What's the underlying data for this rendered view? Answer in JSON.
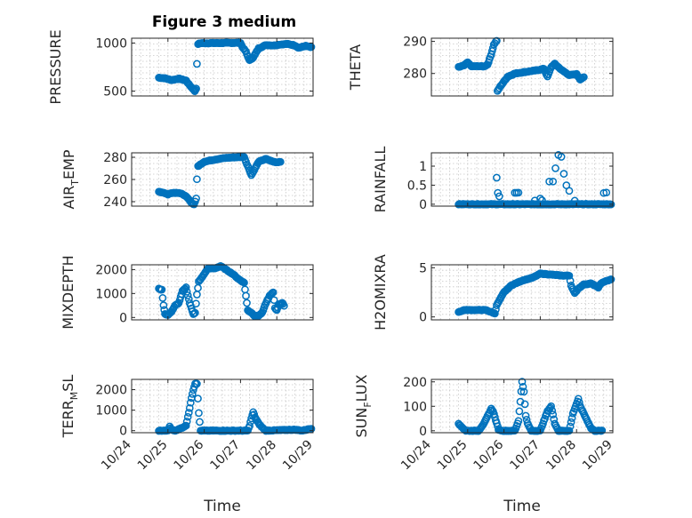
{
  "figure": {
    "title": "Figure 3 medium",
    "xlabel": "Time"
  },
  "colors": {
    "marker": "#0072bd",
    "axis": "#262626",
    "grid": "#c8c8c8"
  },
  "chart_data": [
    {
      "type": "scatter",
      "id": "pressure",
      "ylabel": "PRESSURE",
      "ylabel_parts": [
        "PRESSURE"
      ],
      "ylim": [
        450,
        1050
      ],
      "yticks": [
        500,
        1000
      ],
      "ytick_labels": [
        "500",
        "1000"
      ],
      "xlim": [
        0,
        5
      ],
      "xticks": [
        0,
        1,
        2,
        3,
        4,
        5
      ],
      "xtick_labels": [
        "10/24",
        "10/25",
        "10/26",
        "10/27",
        "10/28",
        "10/29"
      ],
      "grid": true,
      "show_xticklabels": false,
      "anchors": [
        [
          0.75,
          640
        ],
        [
          0.9,
          635
        ],
        [
          1.0,
          625
        ],
        [
          1.1,
          615
        ],
        [
          1.3,
          630
        ],
        [
          1.5,
          610
        ],
        [
          1.6,
          560
        ],
        [
          1.7,
          520
        ],
        [
          1.74,
          500
        ],
        [
          1.78,
          530
        ],
        [
          1.8,
          780
        ],
        [
          1.83,
          990
        ],
        [
          1.9,
          998
        ],
        [
          2.5,
          1000
        ],
        [
          3.0,
          1002
        ],
        [
          3.05,
          960
        ],
        [
          3.15,
          910
        ],
        [
          3.2,
          860
        ],
        [
          3.25,
          820
        ],
        [
          3.35,
          850
        ],
        [
          3.5,
          945
        ],
        [
          3.7,
          980
        ],
        [
          3.9,
          975
        ],
        [
          4.1,
          985
        ],
        [
          4.3,
          990
        ],
        [
          4.5,
          975
        ],
        [
          4.6,
          950
        ],
        [
          4.8,
          970
        ],
        [
          4.95,
          955
        ]
      ]
    },
    {
      "type": "scatter",
      "id": "theta",
      "ylabel": "THETA",
      "ylabel_parts": [
        "THETA"
      ],
      "ylim": [
        273,
        291
      ],
      "yticks": [
        280,
        290
      ],
      "ytick_labels": [
        "280",
        "290"
      ],
      "xlim": [
        0,
        5
      ],
      "xticks": [
        0,
        1,
        2,
        3,
        4,
        5
      ],
      "xtick_labels": [
        "10/24",
        "10/25",
        "10/26",
        "10/27",
        "10/28",
        "10/29"
      ],
      "grid": true,
      "show_xticklabels": false,
      "anchors": [
        [
          0.75,
          282
        ],
        [
          0.9,
          282.5
        ],
        [
          1.0,
          283.5
        ],
        [
          1.1,
          282.2
        ],
        [
          1.3,
          282.3
        ],
        [
          1.45,
          282.2
        ],
        [
          1.55,
          282.8
        ],
        [
          1.65,
          286
        ],
        [
          1.72,
          289
        ],
        [
          1.78,
          290
        ],
        [
          1.8,
          290.2
        ],
        [
          1.82,
          274.5
        ],
        [
          1.9,
          276
        ],
        [
          2.1,
          279
        ],
        [
          2.3,
          280
        ],
        [
          2.6,
          280.5
        ],
        [
          2.9,
          281
        ],
        [
          3.1,
          281.5
        ],
        [
          3.2,
          279
        ],
        [
          3.3,
          282
        ],
        [
          3.4,
          283
        ],
        [
          3.5,
          282
        ],
        [
          3.6,
          281
        ],
        [
          3.8,
          279.5
        ],
        [
          4.0,
          279.8
        ],
        [
          4.1,
          278.2
        ],
        [
          4.2,
          278.8
        ]
      ]
    },
    {
      "type": "scatter",
      "id": "air_temp",
      "ylabel": "AIR_TEMP",
      "ylabel_parts": [
        "AIR",
        "T",
        "EMP"
      ],
      "ylim": [
        236,
        284
      ],
      "yticks": [
        240,
        260,
        280
      ],
      "ytick_labels": [
        "240",
        "260",
        "280"
      ],
      "xlim": [
        0,
        5
      ],
      "xticks": [
        0,
        1,
        2,
        3,
        4,
        5
      ],
      "xtick_labels": [
        "10/24",
        "10/25",
        "10/26",
        "10/27",
        "10/28",
        "10/29"
      ],
      "grid": true,
      "show_xticklabels": false,
      "anchors": [
        [
          0.75,
          249
        ],
        [
          0.9,
          248
        ],
        [
          1.0,
          246.5
        ],
        [
          1.1,
          248
        ],
        [
          1.3,
          248
        ],
        [
          1.45,
          246
        ],
        [
          1.55,
          243
        ],
        [
          1.65,
          239
        ],
        [
          1.72,
          237.5
        ],
        [
          1.78,
          243
        ],
        [
          1.8,
          260
        ],
        [
          1.83,
          272
        ],
        [
          2.0,
          276
        ],
        [
          2.3,
          278
        ],
        [
          2.6,
          279.5
        ],
        [
          2.9,
          280
        ],
        [
          3.1,
          280.5
        ],
        [
          3.15,
          276
        ],
        [
          3.25,
          268
        ],
        [
          3.3,
          264
        ],
        [
          3.4,
          270
        ],
        [
          3.5,
          276
        ],
        [
          3.7,
          278.5
        ],
        [
          3.9,
          276
        ],
        [
          4.0,
          275.5
        ],
        [
          4.1,
          276
        ]
      ]
    },
    {
      "type": "scatter",
      "id": "rainfall",
      "ylabel": "RAINFALL",
      "ylabel_parts": [
        "RAINFALL"
      ],
      "ylim": [
        -0.05,
        1.35
      ],
      "yticks": [
        0,
        0.5,
        1
      ],
      "ytick_labels": [
        "0",
        "0.5",
        "1"
      ],
      "xlim": [
        0,
        5
      ],
      "xticks": [
        0,
        1,
        2,
        3,
        4,
        5
      ],
      "xtick_labels": [
        "10/24",
        "10/25",
        "10/26",
        "10/27",
        "10/28",
        "10/29"
      ],
      "grid": true,
      "show_xticklabels": false,
      "anchors": [
        [
          0.75,
          0
        ],
        [
          4.95,
          0
        ]
      ],
      "points": [
        [
          1.8,
          0.7
        ],
        [
          1.83,
          0.3
        ],
        [
          1.87,
          0.2
        ],
        [
          2.3,
          0.3
        ],
        [
          2.35,
          0.3
        ],
        [
          2.4,
          0.3
        ],
        [
          3.25,
          0.6
        ],
        [
          3.35,
          0.6
        ],
        [
          3.42,
          0.95
        ],
        [
          3.5,
          1.3
        ],
        [
          3.58,
          1.25
        ],
        [
          3.65,
          0.8
        ],
        [
          3.72,
          0.5
        ],
        [
          3.8,
          0.35
        ],
        [
          3.95,
          0.1
        ],
        [
          4.75,
          0.3
        ],
        [
          4.82,
          0.3
        ],
        [
          2.85,
          0.1
        ],
        [
          3.0,
          0.15
        ],
        [
          3.05,
          0.1
        ]
      ]
    },
    {
      "type": "scatter",
      "id": "mixdepth",
      "ylabel": "MIXDEPTH",
      "ylabel_parts": [
        "MIXDEPTH"
      ],
      "ylim": [
        -100,
        2200
      ],
      "yticks": [
        0,
        1000,
        2000
      ],
      "ytick_labels": [
        "0",
        "1000",
        "2000"
      ],
      "xlim": [
        0,
        5
      ],
      "xticks": [
        0,
        1,
        2,
        3,
        4,
        5
      ],
      "xtick_labels": [
        "10/24",
        "10/25",
        "10/26",
        "10/27",
        "10/28",
        "10/29"
      ],
      "grid": true,
      "show_xticklabels": false,
      "anchors": [
        [
          0.75,
          1200
        ],
        [
          0.83,
          1150
        ],
        [
          0.88,
          500
        ],
        [
          0.92,
          150
        ],
        [
          1.0,
          100
        ],
        [
          1.1,
          250
        ],
        [
          1.2,
          500
        ],
        [
          1.3,
          600
        ],
        [
          1.4,
          1100
        ],
        [
          1.5,
          1250
        ],
        [
          1.6,
          600
        ],
        [
          1.7,
          150
        ],
        [
          1.75,
          200
        ],
        [
          1.8,
          950
        ],
        [
          1.85,
          1500
        ],
        [
          1.95,
          1700
        ],
        [
          2.1,
          2050
        ],
        [
          2.3,
          2050
        ],
        [
          2.45,
          2150
        ],
        [
          2.55,
          2050
        ],
        [
          2.7,
          1900
        ],
        [
          2.8,
          1800
        ],
        [
          2.95,
          1600
        ],
        [
          3.1,
          1450
        ],
        [
          3.15,
          900
        ],
        [
          3.2,
          300
        ],
        [
          3.3,
          200
        ],
        [
          3.4,
          50
        ],
        [
          3.5,
          80
        ],
        [
          3.6,
          200
        ],
        [
          3.7,
          600
        ],
        [
          3.8,
          900
        ],
        [
          3.9,
          1050
        ],
        [
          3.95,
          400
        ],
        [
          4.0,
          300
        ],
        [
          4.05,
          550
        ],
        [
          4.15,
          600
        ],
        [
          4.2,
          500
        ]
      ]
    },
    {
      "type": "scatter",
      "id": "h2omixra",
      "ylabel": "H2OMIXRA",
      "ylabel_parts": [
        "H2OMIXRA"
      ],
      "ylim": [
        -0.3,
        5.3
      ],
      "yticks": [
        0,
        5
      ],
      "ytick_labels": [
        "0",
        "5"
      ],
      "xlim": [
        0,
        5
      ],
      "xticks": [
        0,
        1,
        2,
        3,
        4,
        5
      ],
      "xtick_labels": [
        "10/24",
        "10/25",
        "10/26",
        "10/27",
        "10/28",
        "10/29"
      ],
      "grid": true,
      "show_xticklabels": false,
      "anchors": [
        [
          0.75,
          0.5
        ],
        [
          0.9,
          0.7
        ],
        [
          1.2,
          0.7
        ],
        [
          1.5,
          0.7
        ],
        [
          1.75,
          0.35
        ],
        [
          1.8,
          1.2
        ],
        [
          2.0,
          2.5
        ],
        [
          2.2,
          3.2
        ],
        [
          2.5,
          3.7
        ],
        [
          2.8,
          4.0
        ],
        [
          3.0,
          4.4
        ],
        [
          3.3,
          4.3
        ],
        [
          3.6,
          4.2
        ],
        [
          3.8,
          4.2
        ],
        [
          3.85,
          3.2
        ],
        [
          3.95,
          2.4
        ],
        [
          4.05,
          2.9
        ],
        [
          4.2,
          3.3
        ],
        [
          4.4,
          3.4
        ],
        [
          4.6,
          3.0
        ],
        [
          4.7,
          3.5
        ],
        [
          4.95,
          3.8
        ]
      ]
    },
    {
      "type": "scatter",
      "id": "terr_msl",
      "ylabel": "TERR_MSL",
      "ylabel_parts": [
        "TERR",
        "M",
        "SL"
      ],
      "ylim": [
        -100,
        2500
      ],
      "yticks": [
        0,
        1000,
        2000
      ],
      "ytick_labels": [
        "0",
        "1000",
        "2000"
      ],
      "xlim": [
        0,
        5
      ],
      "xticks": [
        0,
        1,
        2,
        3,
        4,
        5
      ],
      "xtick_labels": [
        "10/24",
        "10/25",
        "10/26",
        "10/27",
        "10/28",
        "10/29"
      ],
      "grid": true,
      "show_xticklabels": true,
      "anchors": [
        [
          0.75,
          0
        ],
        [
          1.0,
          0
        ],
        [
          1.05,
          200
        ],
        [
          1.1,
          50
        ],
        [
          1.2,
          0
        ],
        [
          1.4,
          150
        ],
        [
          1.5,
          250
        ],
        [
          1.6,
          1100
        ],
        [
          1.65,
          1600
        ],
        [
          1.7,
          2000
        ],
        [
          1.75,
          2300
        ],
        [
          1.8,
          2300
        ],
        [
          1.85,
          850
        ],
        [
          1.9,
          0
        ],
        [
          3.2,
          0
        ],
        [
          3.25,
          250
        ],
        [
          3.3,
          600
        ],
        [
          3.35,
          900
        ],
        [
          3.4,
          650
        ],
        [
          3.5,
          350
        ],
        [
          3.6,
          150
        ],
        [
          3.7,
          0
        ],
        [
          4.5,
          50
        ],
        [
          4.7,
          0
        ],
        [
          4.95,
          100
        ]
      ]
    },
    {
      "type": "scatter",
      "id": "sun_flux",
      "ylabel": "SUN_FLUX",
      "ylabel_parts": [
        "SUN",
        "F",
        "LUX"
      ],
      "ylim": [
        -8,
        210
      ],
      "yticks": [
        0,
        100,
        200
      ],
      "ytick_labels": [
        "0",
        "100",
        "200"
      ],
      "xlim": [
        0,
        5
      ],
      "xticks": [
        0,
        1,
        2,
        3,
        4,
        5
      ],
      "xtick_labels": [
        "10/24",
        "10/25",
        "10/26",
        "10/27",
        "10/28",
        "10/29"
      ],
      "grid": true,
      "show_xticklabels": true,
      "anchors": [
        [
          0.75,
          30
        ],
        [
          0.8,
          20
        ],
        [
          0.95,
          0
        ],
        [
          1.3,
          0
        ],
        [
          1.45,
          30
        ],
        [
          1.55,
          60
        ],
        [
          1.65,
          90
        ],
        [
          1.7,
          80
        ],
        [
          1.8,
          30
        ],
        [
          1.85,
          5
        ],
        [
          1.95,
          0
        ],
        [
          2.3,
          0
        ],
        [
          2.4,
          40
        ],
        [
          2.45,
          120
        ],
        [
          2.5,
          200
        ],
        [
          2.55,
          160
        ],
        [
          2.6,
          60
        ],
        [
          2.65,
          30
        ],
        [
          2.75,
          0
        ],
        [
          3.0,
          0
        ],
        [
          3.1,
          40
        ],
        [
          3.2,
          80
        ],
        [
          3.3,
          100
        ],
        [
          3.4,
          30
        ],
        [
          3.5,
          0
        ],
        [
          3.8,
          0
        ],
        [
          3.9,
          70
        ],
        [
          4.0,
          110
        ],
        [
          4.05,
          130
        ],
        [
          4.1,
          100
        ],
        [
          4.2,
          70
        ],
        [
          4.3,
          40
        ],
        [
          4.4,
          10
        ],
        [
          4.5,
          0
        ],
        [
          4.7,
          0
        ]
      ]
    }
  ]
}
